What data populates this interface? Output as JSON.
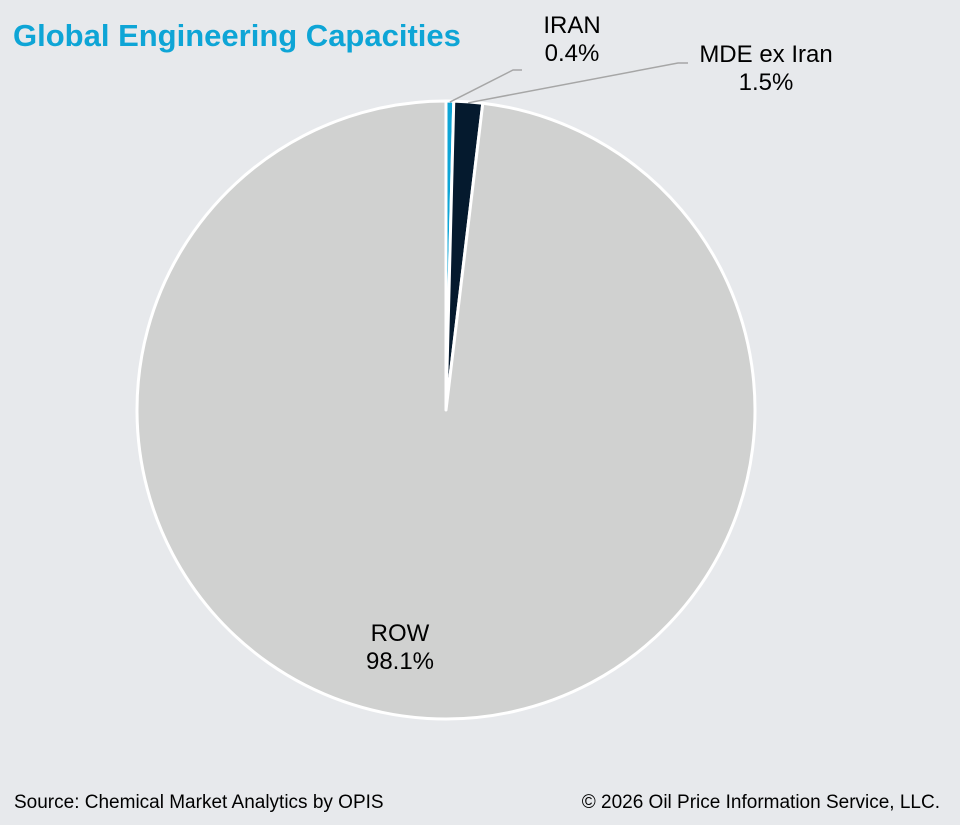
{
  "chart_data": {
    "type": "pie",
    "title": "Global Engineering Capacities",
    "start_angle": "12 o'clock, clockwise",
    "slices": [
      {
        "label": "IRAN",
        "value": 0.4,
        "value_label": "0.4%",
        "color": "#0ea5d6"
      },
      {
        "label": "MDE ex Iran",
        "value": 1.5,
        "value_label": "1.5%",
        "color": "#051a2e"
      },
      {
        "label": "ROW",
        "value": 98.1,
        "value_label": "98.1%",
        "color": "#d0d1d0"
      }
    ]
  },
  "footer": {
    "source": "Source: Chemical Market Analytics by OPIS",
    "copyright": "© 2026 Oil Price Information Service, LLC."
  }
}
